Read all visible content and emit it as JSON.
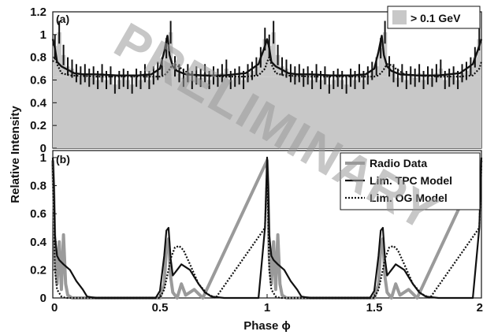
{
  "figure": {
    "watermark": "PRELIMINARY",
    "ylabel": "Relative Intensity",
    "xlabel": "Phase ϕ"
  },
  "chart_data": [
    {
      "type": "line",
      "panel_label": "(a)",
      "xlim": [
        0,
        2
      ],
      "ylim": [
        0,
        1.2
      ],
      "yticks": [
        0,
        0.2,
        0.4,
        0.6,
        0.8,
        1,
        1.2
      ],
      "ytick_labels": [
        "0",
        "0.2",
        "0.4",
        "0.6",
        "0.8",
        "1",
        "1.2"
      ],
      "grid": false,
      "legend": {
        "placement": "top-right",
        "entries": [
          "> 0.1 GeV"
        ]
      },
      "background_level": 0.63,
      "series": [
        {
          "name": "> 0.1 GeV",
          "kind": "histogram",
          "color": "#c8c8c8",
          "x": [
            0.0,
            0.02,
            0.04,
            0.06,
            0.08,
            0.1,
            0.12,
            0.14,
            0.16,
            0.18,
            0.2,
            0.22,
            0.24,
            0.26,
            0.28,
            0.3,
            0.32,
            0.34,
            0.36,
            0.38,
            0.4,
            0.42,
            0.44,
            0.46,
            0.48,
            0.5,
            0.52,
            0.54,
            0.56,
            0.58,
            0.6,
            0.62,
            0.64,
            0.66,
            0.68,
            0.7,
            0.72,
            0.74,
            0.76,
            0.78,
            0.8,
            0.82,
            0.84,
            0.86,
            0.88,
            0.9,
            0.92,
            0.94,
            0.96,
            0.98
          ],
          "y": [
            0.9,
            1.02,
            0.82,
            0.72,
            0.7,
            0.66,
            0.64,
            0.66,
            0.62,
            0.64,
            0.6,
            0.66,
            0.6,
            0.64,
            0.56,
            0.6,
            0.62,
            0.6,
            0.56,
            0.62,
            0.6,
            0.66,
            0.6,
            0.64,
            0.68,
            0.72,
            0.88,
            1.02,
            0.72,
            0.66,
            0.62,
            0.66,
            0.6,
            0.64,
            0.62,
            0.66,
            0.6,
            0.64,
            0.62,
            0.66,
            0.7,
            0.6,
            0.62,
            0.64,
            0.6,
            0.66,
            0.68,
            0.72,
            0.8,
            0.96
          ],
          "yerr": [
            0.1,
            0.1,
            0.09,
            0.08,
            0.08,
            0.08,
            0.08,
            0.08,
            0.08,
            0.08,
            0.08,
            0.08,
            0.08,
            0.08,
            0.08,
            0.08,
            0.08,
            0.08,
            0.08,
            0.08,
            0.08,
            0.08,
            0.08,
            0.08,
            0.08,
            0.08,
            0.09,
            0.1,
            0.09,
            0.08,
            0.08,
            0.08,
            0.08,
            0.08,
            0.08,
            0.08,
            0.08,
            0.08,
            0.08,
            0.08,
            0.08,
            0.08,
            0.08,
            0.08,
            0.08,
            0.08,
            0.08,
            0.08,
            0.09,
            0.1
          ],
          "period": 1
        },
        {
          "name": "Lim. TPC Model",
          "kind": "line",
          "color": "#111111",
          "x": [
            0.0,
            0.01,
            0.02,
            0.04,
            0.06,
            0.08,
            0.1,
            0.14,
            0.2,
            0.3,
            0.4,
            0.46,
            0.5,
            0.52,
            0.535,
            0.545,
            0.56,
            0.58,
            0.62,
            0.7,
            0.8,
            0.9,
            0.96,
            0.99,
            1.0
          ],
          "y": [
            0.96,
            0.88,
            0.76,
            0.72,
            0.7,
            0.68,
            0.66,
            0.65,
            0.65,
            0.64,
            0.64,
            0.65,
            0.7,
            0.85,
            0.99,
            0.82,
            0.72,
            0.68,
            0.65,
            0.64,
            0.64,
            0.66,
            0.74,
            0.9,
            0.96
          ],
          "period": 1
        },
        {
          "name": "Lim. OG Model",
          "kind": "line",
          "color": "#111111",
          "dashed": true,
          "x": [
            0.0,
            0.01,
            0.02,
            0.04,
            0.08,
            0.2,
            0.4,
            0.5,
            0.52,
            0.54,
            0.56,
            0.58,
            0.6,
            0.64,
            0.7,
            0.8,
            0.9,
            0.96,
            0.99,
            1.0
          ],
          "y": [
            0.76,
            0.8,
            0.74,
            0.66,
            0.64,
            0.63,
            0.63,
            0.63,
            0.64,
            0.68,
            0.74,
            0.73,
            0.7,
            0.65,
            0.64,
            0.63,
            0.63,
            0.64,
            0.7,
            0.76
          ],
          "period": 1
        }
      ]
    },
    {
      "type": "line",
      "panel_label": "(b)",
      "xlim": [
        0,
        2
      ],
      "ylim": [
        0,
        1.05
      ],
      "yticks": [
        0,
        0.2,
        0.4,
        0.6,
        0.8,
        1
      ],
      "ytick_labels": [
        "0",
        "0.2",
        "0.4",
        "0.6",
        "0.8",
        "1"
      ],
      "xticks": [
        0,
        0.5,
        1,
        1.5,
        2
      ],
      "xtick_labels": [
        "0",
        "0.5",
        "1",
        "1.5",
        "2"
      ],
      "grid": false,
      "legend": {
        "placement": "top-right",
        "entries": [
          "Radio Data",
          "Lim. TPC Model",
          "Lim. OG Model"
        ]
      },
      "series": [
        {
          "name": "Radio Data",
          "color": "#9a9a9a",
          "x": [
            0.0,
            0.005,
            0.01,
            0.02,
            0.03,
            0.04,
            0.05,
            0.06,
            0.07,
            0.09,
            0.5,
            0.52,
            0.53,
            0.54,
            0.55,
            0.56,
            0.57,
            0.58,
            0.6,
            0.62,
            0.66,
            0.7,
            1.0
          ],
          "y": [
            0.98,
            0.7,
            0.3,
            0.1,
            0.4,
            0.06,
            0.45,
            0.1,
            0.02,
            0.0,
            0.0,
            0.1,
            0.35,
            0.42,
            0.15,
            0.04,
            0.02,
            0.0,
            0.1,
            0.02,
            0.06,
            0.0,
            0.98
          ],
          "period": 1
        },
        {
          "name": "Lim. TPC Model",
          "color": "#111111",
          "x": [
            0.0,
            0.005,
            0.01,
            0.02,
            0.03,
            0.05,
            0.08,
            0.11,
            0.14,
            0.16,
            0.2,
            0.48,
            0.5,
            0.52,
            0.53,
            0.54,
            0.55,
            0.56,
            0.58,
            0.6,
            0.64,
            0.68,
            0.71,
            0.74,
            0.8,
            0.9,
            0.96,
            0.99,
            1.0
          ],
          "y": [
            1.0,
            0.8,
            0.45,
            0.3,
            0.27,
            0.24,
            0.2,
            0.12,
            0.06,
            0.01,
            0.0,
            0.0,
            0.05,
            0.3,
            0.48,
            0.5,
            0.28,
            0.16,
            0.2,
            0.24,
            0.2,
            0.1,
            0.04,
            0.01,
            0.0,
            0.0,
            0.0,
            0.5,
            1.0
          ],
          "period": 1
        },
        {
          "name": "Lim. OG Model",
          "color": "#111111",
          "dashed": true,
          "x": [
            0.0,
            0.005,
            0.01,
            0.02,
            0.04,
            0.06,
            0.5,
            0.52,
            0.54,
            0.55,
            0.57,
            0.59,
            0.61,
            0.64,
            0.68,
            0.72,
            0.76,
            0.99,
            1.0
          ],
          "y": [
            0.95,
            0.6,
            0.2,
            0.06,
            0.01,
            0.0,
            0.0,
            0.06,
            0.2,
            0.28,
            0.36,
            0.37,
            0.34,
            0.24,
            0.1,
            0.03,
            0.0,
            0.5,
            0.95
          ],
          "period": 1
        }
      ]
    }
  ]
}
